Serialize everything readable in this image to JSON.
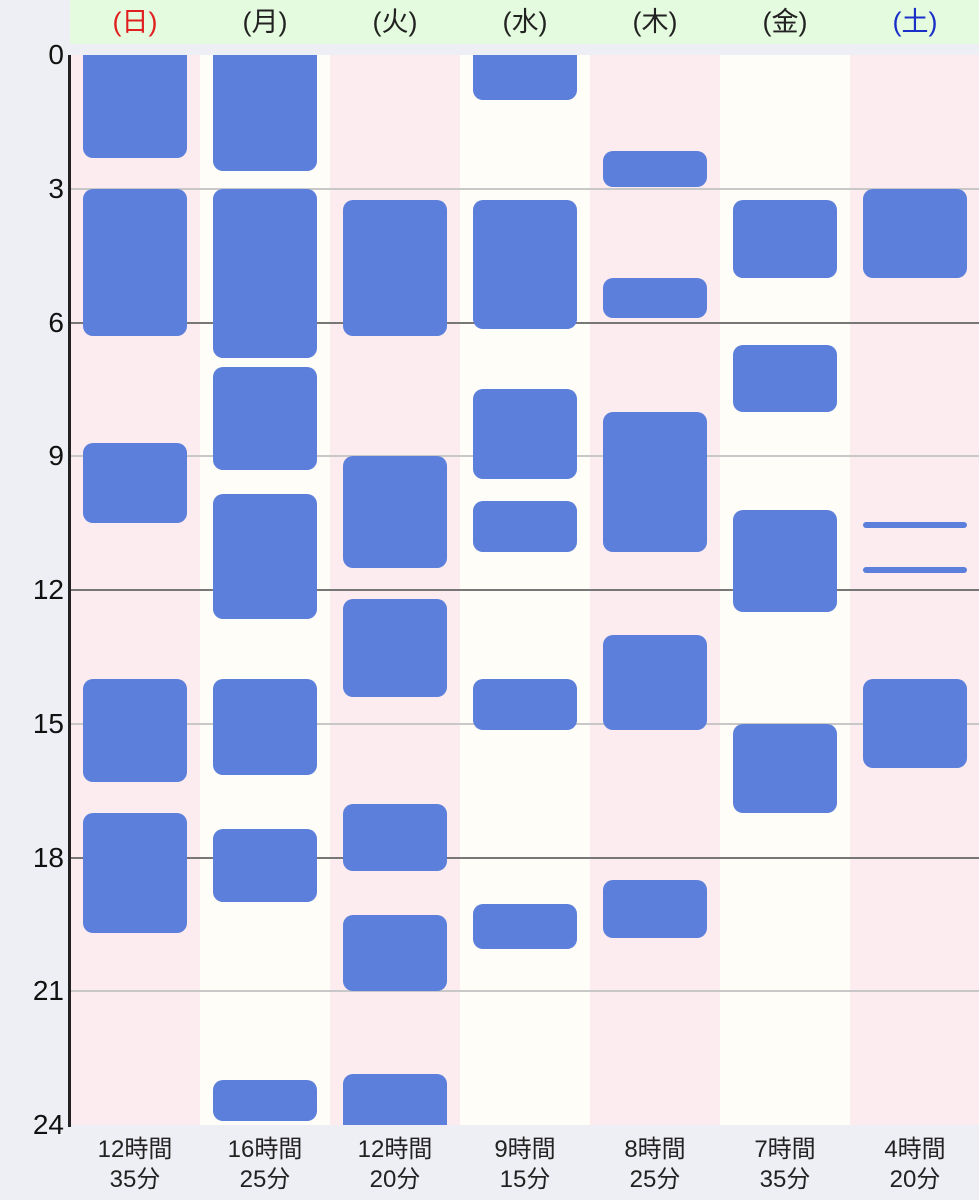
{
  "days": [
    {
      "label": "(日)",
      "color": "#e02020",
      "bg": "#fcecef",
      "blocks": [
        [
          0,
          2.3
        ],
        [
          3,
          6.3
        ],
        [
          8.7,
          10.5
        ],
        [
          14,
          16.3
        ],
        [
          17,
          19.7
        ]
      ],
      "lines": [],
      "total": [
        "12時間",
        "35分"
      ]
    },
    {
      "label": "(月)",
      "color": "#222222",
      "bg": "#fffdf7",
      "blocks": [
        [
          0,
          2.6
        ],
        [
          3,
          6.8
        ],
        [
          7,
          9.3
        ],
        [
          9.85,
          12.65
        ],
        [
          14,
          16.15
        ],
        [
          17.35,
          19
        ],
        [
          23,
          23.9
        ]
      ],
      "lines": [],
      "total": [
        "16時間",
        "25分"
      ]
    },
    {
      "label": "(火)",
      "color": "#222222",
      "bg": "#fcecef",
      "blocks": [
        [
          3.25,
          6.3
        ],
        [
          9,
          11.5
        ],
        [
          12.2,
          14.4
        ],
        [
          16.8,
          18.3
        ],
        [
          19.3,
          21
        ]
      ],
      "lines": [],
      "tail": [
        22.85
      ],
      "total": [
        "12時間",
        "20分"
      ]
    },
    {
      "label": "(水)",
      "color": "#222222",
      "bg": "#fffdf7",
      "blocks": [
        [
          0,
          1
        ],
        [
          3.25,
          6.15
        ],
        [
          7.5,
          9.5
        ],
        [
          10,
          11.15
        ],
        [
          14,
          15.15
        ],
        [
          19.05,
          20.05
        ]
      ],
      "lines": [],
      "total": [
        "9時間",
        "15分"
      ]
    },
    {
      "label": "(木)",
      "color": "#222222",
      "bg": "#fcecef",
      "blocks": [
        [
          2.15,
          2.95
        ],
        [
          5,
          5.9
        ],
        [
          8,
          11.15
        ],
        [
          13,
          15.15
        ],
        [
          18.5,
          19.8
        ]
      ],
      "lines": [],
      "total": [
        "8時間",
        "25分"
      ]
    },
    {
      "label": "(金)",
      "color": "#222222",
      "bg": "#fffdf7",
      "blocks": [
        [
          3.25,
          5
        ],
        [
          6.5,
          8
        ],
        [
          10.2,
          12.5
        ],
        [
          15,
          17
        ]
      ],
      "lines": [],
      "total": [
        "7時間",
        "35分"
      ]
    },
    {
      "label": "(土)",
      "color": "#1a2fc8",
      "bg": "#fcecef",
      "blocks": [
        [
          3,
          5
        ],
        [
          14,
          16
        ]
      ],
      "lines": [
        10.55,
        11.55
      ],
      "total": [
        "4時間",
        "20分"
      ]
    }
  ],
  "y_ticks": [
    "0",
    "3",
    "6",
    "9",
    "12",
    "15",
    "18",
    "21",
    "24"
  ],
  "y_max": 24
}
